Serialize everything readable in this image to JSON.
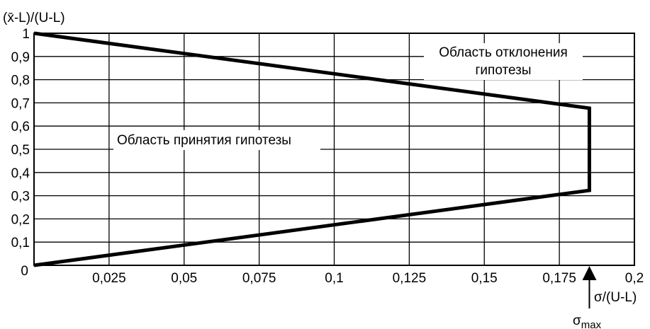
{
  "chart_data": {
    "type": "line",
    "xlabel": "σ/(U-L)",
    "ylabel": "(x̄-L)/(U-L)",
    "x_ticks": [
      "0,025",
      "0,05",
      "0,075",
      "0,1",
      "0,125",
      "0,15",
      "0,175",
      "0,2"
    ],
    "x_tick_values": [
      0.025,
      0.05,
      0.075,
      0.1,
      0.125,
      0.15,
      0.175,
      0.2
    ],
    "y_ticks": [
      "0",
      "0,1",
      "0,2",
      "0,3",
      "0,4",
      "0,5",
      "0,6",
      "0,7",
      "0,8",
      "0,9",
      "1"
    ],
    "y_tick_values": [
      0,
      0.1,
      0.2,
      0.3,
      0.4,
      0.5,
      0.6,
      0.7,
      0.8,
      0.9,
      1.0
    ],
    "xlim": [
      0,
      0.2
    ],
    "ylim": [
      0,
      1
    ],
    "grid": true,
    "series": [
      {
        "x": [
          0,
          0.185,
          0.185,
          0
        ],
        "y": [
          1.0,
          0.677,
          0.323,
          0.0
        ]
      }
    ],
    "annotations": {
      "rejection_line1": "Область отклонения",
      "rejection_line2": "гипотезы",
      "acceptance": "Область принятия гипотезы",
      "sigma_max_marker": "σ",
      "sigma_max_subscript": "max",
      "sigma_max_x": 0.185
    }
  }
}
